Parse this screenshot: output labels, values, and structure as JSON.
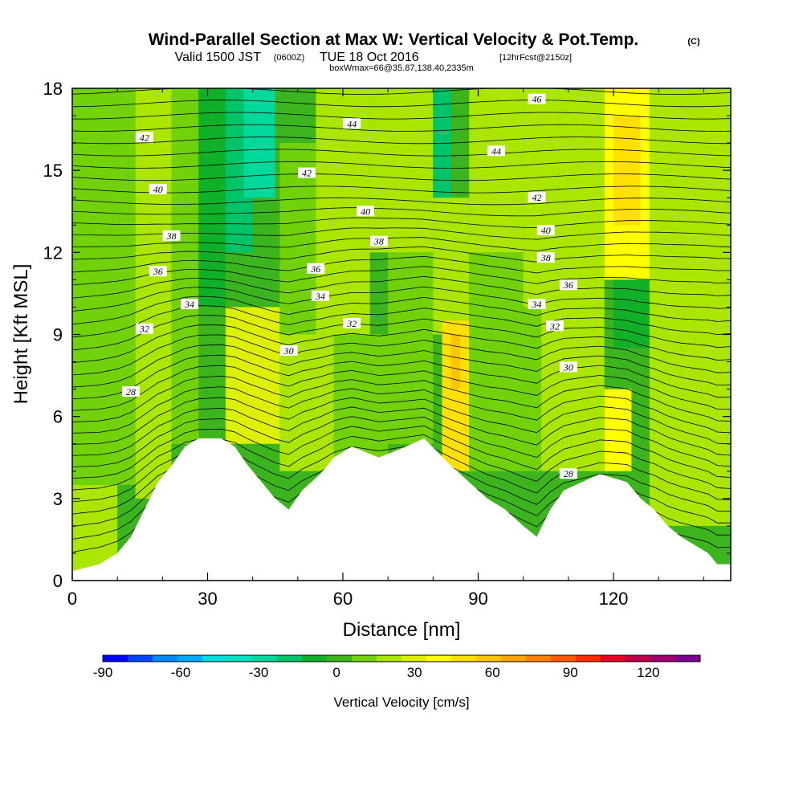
{
  "header": {
    "title": "Wind-Parallel Section at Max W: Vertical Velocity & Pot.Temp.",
    "copyright": "(C)",
    "valid_prefix": "Valid 1500 JST",
    "valid_utc": "(0600Z)",
    "valid_date": "TUE 18 Oct 2016",
    "forecast": "[12hrFcst@2150z]",
    "box_info": "boxWmax=66@35.87,138.40,2335m"
  },
  "chart_data": {
    "type": "heatmap",
    "xlabel": "Distance [nm]",
    "ylabel": "Height [Kft MSL]",
    "xlim": [
      0,
      146
    ],
    "ylim": [
      0,
      18
    ],
    "x_ticks": [
      0,
      30,
      60,
      90,
      120
    ],
    "y_ticks": [
      0,
      3,
      6,
      9,
      12,
      15,
      18
    ],
    "x_tick_labels": [
      "0",
      "30",
      "60",
      "90",
      "120"
    ],
    "y_tick_labels": [
      "0",
      "3",
      "6",
      "9",
      "12",
      "15",
      "18"
    ],
    "terrain_kft": [
      [
        0,
        0.35
      ],
      [
        6,
        0.6
      ],
      [
        10,
        1.0
      ],
      [
        13,
        1.6
      ],
      [
        16,
        2.6
      ],
      [
        19,
        3.6
      ],
      [
        22,
        4.2
      ],
      [
        25,
        4.9
      ],
      [
        28,
        5.2
      ],
      [
        33,
        5.2
      ],
      [
        36,
        4.9
      ],
      [
        39,
        4.2
      ],
      [
        42,
        3.6
      ],
      [
        45,
        3.0
      ],
      [
        48,
        2.6
      ],
      [
        51,
        3.3
      ],
      [
        55,
        3.9
      ],
      [
        58,
        4.5
      ],
      [
        62,
        4.9
      ],
      [
        68,
        4.5
      ],
      [
        74,
        4.9
      ],
      [
        78,
        5.2
      ],
      [
        84,
        4.2
      ],
      [
        88,
        3.6
      ],
      [
        92,
        3.0
      ],
      [
        96,
        2.6
      ],
      [
        100,
        2.0
      ],
      [
        103,
        1.6
      ],
      [
        106,
        2.6
      ],
      [
        109,
        3.3
      ],
      [
        113,
        3.6
      ],
      [
        117,
        3.9
      ],
      [
        123,
        3.6
      ],
      [
        126,
        3.0
      ],
      [
        129,
        2.6
      ],
      [
        132,
        2.0
      ],
      [
        135,
        1.6
      ],
      [
        138,
        1.3
      ],
      [
        141,
        1.0
      ],
      [
        143,
        0.6
      ],
      [
        146,
        0.6
      ]
    ],
    "w_color_levels": [
      -90,
      -80,
      -70,
      -60,
      -50,
      -40,
      -30,
      -20,
      -10,
      0,
      10,
      20,
      30,
      40,
      50,
      60,
      70,
      80,
      90,
      100,
      110,
      120,
      130,
      140
    ],
    "w_colors": [
      "#0000ff",
      "#0044ff",
      "#0088ff",
      "#00aaff",
      "#00dddd",
      "#00e0c0",
      "#00d99b",
      "#00c46a",
      "#10b028",
      "#3cb41e",
      "#72d20a",
      "#aae600",
      "#dcf000",
      "#ffff00",
      "#ffe000",
      "#ffc400",
      "#ffa400",
      "#ff8000",
      "#ff5a00",
      "#ff2a00",
      "#e60024",
      "#c00046",
      "#a0006e",
      "#7a0090",
      "#5a0096"
    ],
    "vertical_velocity_cells": [
      {
        "x0": 0,
        "x1": 10,
        "y0": 0,
        "y1": 3.5,
        "w": 15
      },
      {
        "x0": 0,
        "x1": 14,
        "y0": 3.5,
        "y1": 9,
        "w": 8
      },
      {
        "x0": 0,
        "x1": 14,
        "y0": 9,
        "y1": 18,
        "w": 5
      },
      {
        "x0": 14,
        "x1": 22,
        "y0": 3,
        "y1": 18,
        "w": 12
      },
      {
        "x0": 22,
        "x1": 28,
        "y0": 5,
        "y1": 18,
        "w": 8
      },
      {
        "x0": 28,
        "x1": 34,
        "y0": 10,
        "y1": 18,
        "w": -15
      },
      {
        "x0": 34,
        "x1": 40,
        "y0": 12,
        "y1": 18,
        "w": -25
      },
      {
        "x0": 38,
        "x1": 45,
        "y0": 14,
        "y1": 18,
        "w": -40
      },
      {
        "x0": 34,
        "x1": 46,
        "y0": 5,
        "y1": 10,
        "w": 22
      },
      {
        "x0": 46,
        "x1": 54,
        "y0": 9,
        "y1": 16,
        "w": 5
      },
      {
        "x0": 46,
        "x1": 58,
        "y0": 4,
        "y1": 9,
        "w": 15
      },
      {
        "x0": 54,
        "x1": 66,
        "y0": 9,
        "y1": 18,
        "w": 12
      },
      {
        "x0": 58,
        "x1": 70,
        "y0": 4.5,
        "y1": 9,
        "w": 8
      },
      {
        "x0": 66,
        "x1": 80,
        "y0": 12,
        "y1": 18,
        "w": 18
      },
      {
        "x0": 70,
        "x1": 80,
        "y0": 5,
        "y1": 12,
        "w": 5
      },
      {
        "x0": 80,
        "x1": 84,
        "y0": 14,
        "y1": 18,
        "w": -30
      },
      {
        "x0": 80,
        "x1": 88,
        "y0": 9,
        "y1": 14,
        "w": 10
      },
      {
        "x0": 82,
        "x1": 88,
        "y0": 4,
        "y1": 9.5,
        "w": 40
      },
      {
        "x0": 84,
        "x1": 86,
        "y0": 7,
        "y1": 9,
        "w": 55
      },
      {
        "x0": 88,
        "x1": 100,
        "y0": 12,
        "y1": 18,
        "w": 10
      },
      {
        "x0": 88,
        "x1": 104,
        "y0": 4,
        "y1": 12,
        "w": 5
      },
      {
        "x0": 100,
        "x1": 108,
        "y0": 10,
        "y1": 18,
        "w": 15
      },
      {
        "x0": 104,
        "x1": 118,
        "y0": 4,
        "y1": 10,
        "w": 12
      },
      {
        "x0": 108,
        "x1": 118,
        "y0": 10,
        "y1": 18,
        "w": 18
      },
      {
        "x0": 118,
        "x1": 128,
        "y0": 11,
        "y1": 18,
        "w": 35
      },
      {
        "x0": 120,
        "x1": 126,
        "y0": 13,
        "y1": 17,
        "w": 45
      },
      {
        "x0": 120,
        "x1": 128,
        "y0": 8.5,
        "y1": 11,
        "w": -20
      },
      {
        "x0": 118,
        "x1": 124,
        "y0": 4,
        "y1": 7,
        "w": 30
      },
      {
        "x0": 128,
        "x1": 146,
        "y0": 9,
        "y1": 18,
        "w": 10
      },
      {
        "x0": 128,
        "x1": 146,
        "y0": 2,
        "y1": 9,
        "w": 12
      }
    ],
    "theta_contours": [
      {
        "label": "28",
        "base_kft": 6.9
      },
      {
        "label": "30",
        "base_kft": 8.3
      },
      {
        "label": "32",
        "base_kft": 9.3
      },
      {
        "label": "34",
        "base_kft": 10.2
      },
      {
        "label": "36",
        "base_kft": 11.4
      },
      {
        "label": "38",
        "base_kft": 12.6
      },
      {
        "label": "40",
        "base_kft": 14.3
      },
      {
        "label": "42",
        "base_kft": 16.2
      },
      {
        "label": "44",
        "base_kft": 17.0
      },
      {
        "label": "46",
        "base_kft": 17.8
      }
    ],
    "contour_labels": [
      {
        "text": "42",
        "x": 16,
        "y": 16.2
      },
      {
        "text": "40",
        "x": 19,
        "y": 14.3
      },
      {
        "text": "38",
        "x": 22,
        "y": 12.6
      },
      {
        "text": "36",
        "x": 19,
        "y": 11.3
      },
      {
        "text": "34",
        "x": 26,
        "y": 10.1
      },
      {
        "text": "32",
        "x": 16,
        "y": 9.2
      },
      {
        "text": "28",
        "x": 13,
        "y": 6.9
      },
      {
        "text": "44",
        "x": 62,
        "y": 16.7
      },
      {
        "text": "42",
        "x": 52,
        "y": 14.9
      },
      {
        "text": "40",
        "x": 65,
        "y": 13.5
      },
      {
        "text": "38",
        "x": 68,
        "y": 12.4
      },
      {
        "text": "36",
        "x": 54,
        "y": 11.4
      },
      {
        "text": "34",
        "x": 55,
        "y": 10.4
      },
      {
        "text": "32",
        "x": 62,
        "y": 9.4
      },
      {
        "text": "30",
        "x": 48,
        "y": 8.4
      },
      {
        "text": "46",
        "x": 103,
        "y": 17.6
      },
      {
        "text": "44",
        "x": 94,
        "y": 15.7
      },
      {
        "text": "42",
        "x": 103,
        "y": 14.0
      },
      {
        "text": "40",
        "x": 105,
        "y": 12.8
      },
      {
        "text": "38",
        "x": 105,
        "y": 11.8
      },
      {
        "text": "36",
        "x": 110,
        "y": 10.8
      },
      {
        "text": "34",
        "x": 103,
        "y": 10.1
      },
      {
        "text": "32",
        "x": 107,
        "y": 9.3
      },
      {
        "text": "30",
        "x": 110,
        "y": 7.8
      },
      {
        "text": "28",
        "x": 110,
        "y": 3.9
      }
    ]
  },
  "colorbar": {
    "label": "Vertical Velocity [cm/s]",
    "tick_labels": [
      "-90",
      "-60",
      "-30",
      "0",
      "30",
      "60",
      "90",
      "120"
    ],
    "tick_values": [
      -90,
      -60,
      -30,
      0,
      30,
      60,
      90,
      120
    ]
  }
}
